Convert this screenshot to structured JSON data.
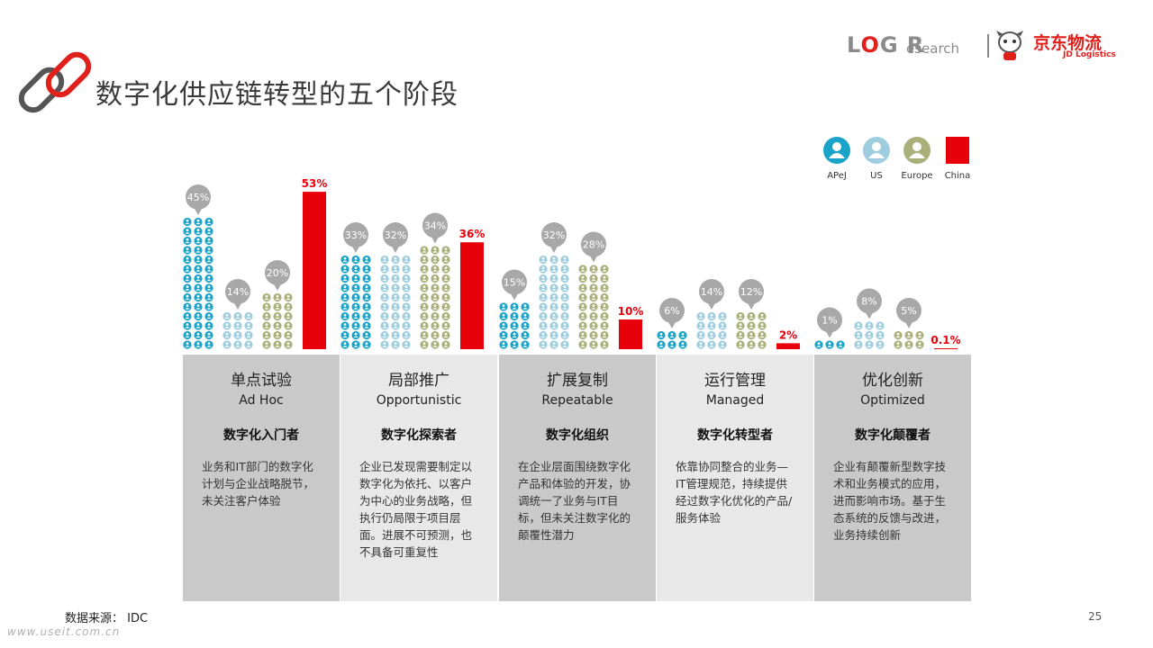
{
  "title": "数字化供应链转型的五个阶段",
  "brand": {
    "logr_left": "L",
    "logr_o": "O",
    "logr_right": "G R",
    "research": "esearch",
    "jd_cn": "京东物流",
    "jd_en": "JD Logistics"
  },
  "legend": [
    {
      "name": "APeJ",
      "color": "#1aa3c8"
    },
    {
      "name": "US",
      "color": "#9ecde0"
    },
    {
      "name": "Europe",
      "color": "#a9b07a"
    },
    {
      "name": "China",
      "color": "#e8000b"
    }
  ],
  "chart_data": {
    "type": "bar",
    "categories": [
      "单点试验",
      "局部推广",
      "扩展复制",
      "运行管理",
      "优化创新"
    ],
    "series": [
      {
        "name": "APeJ",
        "values": [
          45,
          33,
          15,
          6,
          1
        ],
        "labels": [
          "45%",
          "33%",
          "15%",
          "6%",
          "1%"
        ]
      },
      {
        "name": "US",
        "values": [
          14,
          32,
          32,
          14,
          8
        ],
        "labels": [
          "14%",
          "32%",
          "32%",
          "14%",
          "8%"
        ]
      },
      {
        "name": "Europe",
        "values": [
          20,
          34,
          28,
          12,
          5
        ],
        "labels": [
          "20%",
          "34%",
          "28%",
          "12%",
          "5%"
        ]
      },
      {
        "name": "China",
        "values": [
          53,
          36,
          10,
          2,
          0.1
        ],
        "labels": [
          "53%",
          "36%",
          "10%",
          "2%",
          "0.1%"
        ]
      }
    ]
  },
  "stages": [
    {
      "cn": "单点试验",
      "en": "Ad Hoc",
      "role": "数字化入门者",
      "desc": "业务和IT部门的数字化计划与企业战略脱节，未关注客户体验"
    },
    {
      "cn": "局部推广",
      "en": "Opportunistic",
      "role": "数字化探索者",
      "desc": "企业已发现需要制定以数字化为依托、以客户为中心的业务战略，但执行仍局限于项目层面。进展不可预测，也不具备可重复性"
    },
    {
      "cn": "扩展复制",
      "en": "Repeatable",
      "role": "数字化组织",
      "desc": "在企业层面围绕数字化产品和体验的开发，协调统一了业务与IT目标，但未关注数字化的颠覆性潜力"
    },
    {
      "cn": "运行管理",
      "en": "Managed",
      "role": "数字化转型者",
      "desc": "依靠协同整合的业务—IT管理规范，持续提供经过数字化优化的产品/服务体验"
    },
    {
      "cn": "优化创新",
      "en": "Optimized",
      "role": "数字化颠覆者",
      "desc": "企业有颠覆新型数字技术和业务模式的应用，进而影响市场。基于生态系统的反馈与改进，业务持续创新"
    }
  ],
  "source_note": "数据来源： IDC",
  "page_number": "25",
  "watermark": "www.useit.com.cn"
}
